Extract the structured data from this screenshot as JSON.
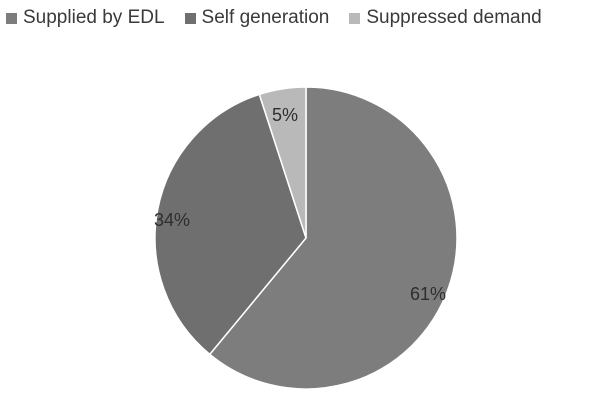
{
  "chart_data": {
    "type": "pie",
    "categories": [
      "Supplied by EDL",
      "Self generation",
      "Suppressed demand"
    ],
    "values": [
      61,
      34,
      5
    ],
    "labels": [
      "61%",
      "34%",
      "5%"
    ],
    "colors": [
      "#7d7d7d",
      "#6f6f6f",
      "#b9b9b9"
    ],
    "legend_position": "top"
  }
}
